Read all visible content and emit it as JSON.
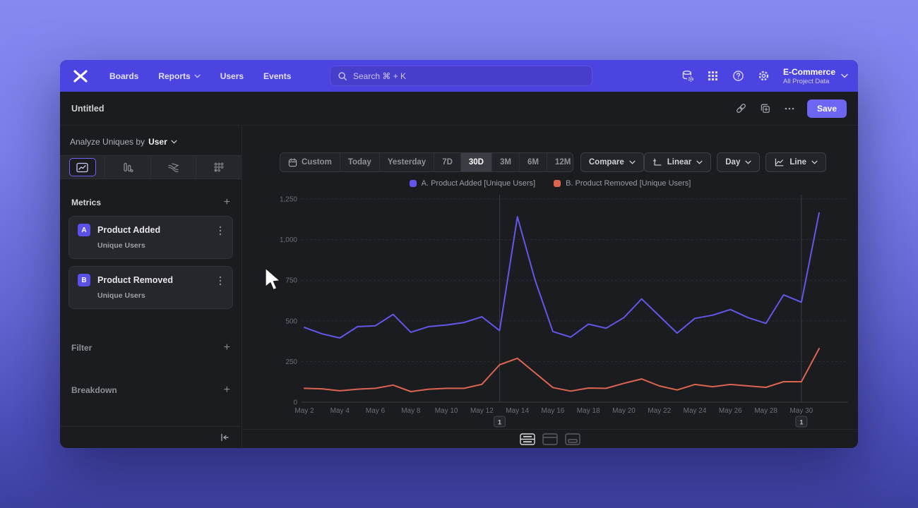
{
  "topnav": {
    "items": [
      {
        "label": "Boards",
        "has_dropdown": false
      },
      {
        "label": "Reports",
        "has_dropdown": true
      },
      {
        "label": "Users",
        "has_dropdown": false
      },
      {
        "label": "Events",
        "has_dropdown": false
      }
    ],
    "search_placeholder": "Search  ⌘ + K",
    "project": {
      "name": "E-Commerce",
      "scope": "All Project Data"
    }
  },
  "report_bar": {
    "title": "Untitled",
    "save_label": "Save"
  },
  "sidebar": {
    "analyze_prefix": "Analyze Uniques by",
    "analyze_value": "User",
    "tabs": [
      "insights",
      "funnels",
      "flows",
      "retention"
    ],
    "active_tab": "insights",
    "metrics_label": "Metrics",
    "metrics": [
      {
        "badge": "A",
        "name": "Product Added",
        "subtitle": "Unique Users"
      },
      {
        "badge": "B",
        "name": "Product Removed",
        "subtitle": "Unique Users"
      }
    ],
    "filter_label": "Filter",
    "breakdown_label": "Breakdown"
  },
  "toolbar": {
    "ranges": [
      {
        "label": "Custom",
        "icon": "calendar"
      },
      {
        "label": "Today"
      },
      {
        "label": "Yesterday"
      },
      {
        "label": "7D"
      },
      {
        "label": "30D"
      },
      {
        "label": "3M"
      },
      {
        "label": "6M"
      },
      {
        "label": "12M"
      }
    ],
    "active_range": "30D",
    "compare_label": "Compare",
    "scale": "Linear",
    "interval": "Day",
    "chart_type": "Line"
  },
  "view_modes": {
    "options": [
      "split",
      "chart",
      "table"
    ],
    "active": "split"
  },
  "colors": {
    "accent": "#6e66f3",
    "nav": "#4c44e0",
    "series_a": "#6157e8",
    "series_b": "#dc6450"
  },
  "chart_data": {
    "type": "line",
    "x": [
      "May 2",
      "May 3",
      "May 4",
      "May 5",
      "May 6",
      "May 7",
      "May 8",
      "May 9",
      "May 10",
      "May 11",
      "May 12",
      "May 13",
      "May 14",
      "May 15",
      "May 16",
      "May 17",
      "May 18",
      "May 19",
      "May 20",
      "May 21",
      "May 22",
      "May 23",
      "May 24",
      "May 25",
      "May 26",
      "May 27",
      "May 28",
      "May 29",
      "May 30",
      "May 31"
    ],
    "x_tick_every": 2,
    "series": [
      {
        "name": "A. Product Added [Unique Users]",
        "color": "#6157e8",
        "values": [
          460,
          420,
          395,
          465,
          470,
          540,
          430,
          465,
          475,
          490,
          525,
          440,
          1140,
          750,
          435,
          400,
          480,
          455,
          520,
          635,
          530,
          425,
          515,
          535,
          570,
          520,
          485,
          660,
          615,
          1165
        ]
      },
      {
        "name": "B. Product Removed [Unique Users]",
        "color": "#dc6450",
        "values": [
          85,
          82,
          70,
          80,
          85,
          105,
          65,
          80,
          85,
          85,
          110,
          230,
          270,
          180,
          90,
          68,
          87,
          85,
          116,
          143,
          100,
          75,
          109,
          95,
          109,
          100,
          91,
          126,
          126,
          330
        ]
      }
    ],
    "ylim": [
      0,
      1250
    ],
    "yticks": [
      0,
      250,
      500,
      750,
      1000,
      1250
    ],
    "ytick_labels": [
      "0",
      "250",
      "500",
      "750",
      "1,000",
      "1,250"
    ],
    "grid": "horizontal-dashed",
    "legend_position": "top-center",
    "annotations": [
      {
        "x_index": 11,
        "x_label": "May 13",
        "label": "1"
      },
      {
        "x_index": 28,
        "x_label": "May 30",
        "label": "1"
      }
    ]
  }
}
